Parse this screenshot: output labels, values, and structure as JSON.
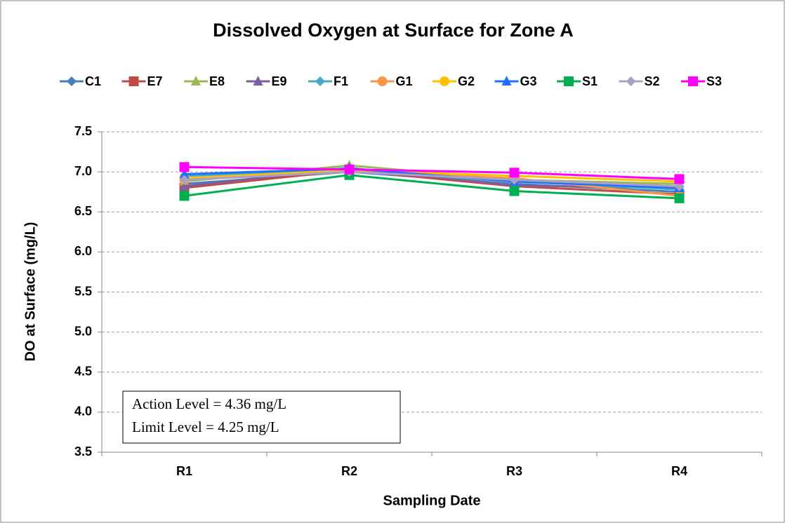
{
  "chart_data": {
    "type": "line",
    "title": "Dissolved Oxygen at Surface for Zone A",
    "xlabel": "Sampling Date",
    "ylabel": "DO at Surface (mg/L)",
    "categories": [
      "R1",
      "R2",
      "R3",
      "R4"
    ],
    "ylim": [
      3.5,
      7.5
    ],
    "yticks": [
      3.5,
      {
        "value": 4,
        "label": "4.0"
      },
      4.5,
      {
        "value": 5,
        "label": "5.0"
      },
      5.5,
      {
        "value": 6,
        "label": "6.0"
      },
      6.5,
      {
        "value": 7,
        "label": "7.0"
      },
      7.5
    ],
    "grid": true,
    "legend": "top",
    "annotations": [
      "Action Level = 4.36 mg/L",
      "Limit Level = 4.25 mg/L"
    ],
    "series": [
      {
        "name": "C1",
        "color": "#4a7ebb",
        "marker": "diamond",
        "values": [
          6.85,
          7.0,
          6.85,
          6.75
        ]
      },
      {
        "name": "E7",
        "color": "#be4b48",
        "marker": "square",
        "values": [
          6.8,
          7.02,
          6.82,
          6.72
        ]
      },
      {
        "name": "E8",
        "color": "#98b954",
        "marker": "triangle",
        "values": [
          6.88,
          7.08,
          6.9,
          6.85
        ]
      },
      {
        "name": "E9",
        "color": "#7d60a0",
        "marker": "triangle",
        "values": [
          6.82,
          7.05,
          6.83,
          6.8
        ]
      },
      {
        "name": "F1",
        "color": "#46aac5",
        "marker": "diamond",
        "values": [
          6.95,
          7.02,
          6.88,
          6.78
        ]
      },
      {
        "name": "G1",
        "color": "#f79646",
        "marker": "circle",
        "values": [
          6.9,
          7.0,
          6.92,
          6.7
        ]
      },
      {
        "name": "G2",
        "color": "#ffc000",
        "marker": "circle",
        "values": [
          6.92,
          7.02,
          6.95,
          6.88
        ]
      },
      {
        "name": "G3",
        "color": "#1f6fff",
        "marker": "triangle",
        "values": [
          6.97,
          7.04,
          6.88,
          6.8
        ]
      },
      {
        "name": "S1",
        "color": "#00b050",
        "marker": "square",
        "values": [
          6.7,
          6.96,
          6.76,
          6.67
        ]
      },
      {
        "name": "S2",
        "color": "#a9a0c8",
        "marker": "diamond",
        "values": [
          6.9,
          7.0,
          6.9,
          6.82
        ]
      },
      {
        "name": "S3",
        "color": "#ff00ff",
        "marker": "square",
        "values": [
          7.06,
          7.03,
          6.99,
          6.91
        ]
      }
    ]
  }
}
